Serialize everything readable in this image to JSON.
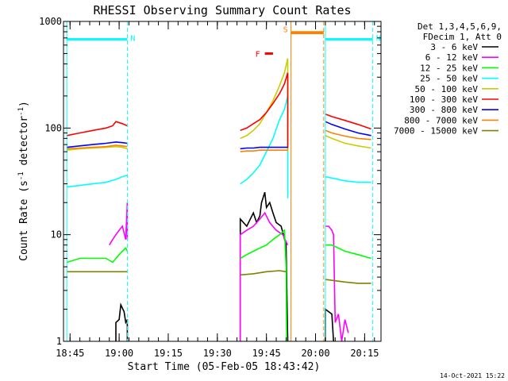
{
  "chart_data": {
    "type": "line",
    "title": "RHESSI Observing Summary Count Rates",
    "xlabel": "Start Time (05-Feb-05 18:43:42)",
    "ylabel": "Count Rate (s⁻¹ detector⁻¹)",
    "ylabel_parts": [
      "Count Rate (s",
      "-1",
      " detector",
      "-1",
      ")"
    ],
    "yscale": "log",
    "ylim": [
      1,
      1000
    ],
    "xlim_minutes": [
      -2,
      95
    ],
    "y_ticks": [
      {
        "value": 1,
        "label": "1"
      },
      {
        "value": 10,
        "label": "10"
      },
      {
        "value": 100,
        "label": "100"
      },
      {
        "value": 1000,
        "label": "1000"
      }
    ],
    "x_ticks": [
      {
        "value": 0,
        "label": "18:45"
      },
      {
        "value": 15,
        "label": "19:00"
      },
      {
        "value": 30,
        "label": "19:15"
      },
      {
        "value": 45,
        "label": "19:30"
      },
      {
        "value": 60,
        "label": "19:45"
      },
      {
        "value": 75,
        "label": "20:00"
      },
      {
        "value": 90,
        "label": "20:15"
      }
    ],
    "x_minor_step": 3,
    "footer_date": "14-Oct-2021 15:22",
    "legend_header": [
      "Det 1,3,4,5,6,9,",
      "FDecim 1, Att 0"
    ],
    "series": [
      {
        "name": "3 - 6 keV",
        "color": "#000000",
        "points": [
          [
            14,
            1
          ],
          [
            14,
            1.5
          ],
          [
            15,
            1.6
          ],
          [
            15.5,
            2.2
          ],
          [
            16.5,
            1.9
          ],
          [
            17,
            1.5
          ],
          [
            17.5,
            1.6
          ],
          [
            17.5,
            1
          ],
          [
            -20,
            null
          ],
          [
            52,
            1
          ],
          [
            52,
            14
          ],
          [
            54,
            12
          ],
          [
            56,
            16
          ],
          [
            57,
            13
          ],
          [
            58,
            15
          ],
          [
            58.5,
            20
          ],
          [
            59.5,
            25
          ],
          [
            60,
            18
          ],
          [
            61,
            20
          ],
          [
            62,
            16
          ],
          [
            63,
            13
          ],
          [
            64.5,
            12
          ],
          [
            66,
            8
          ],
          [
            66.5,
            1
          ],
          [
            -20,
            null
          ],
          [
            78,
            1
          ],
          [
            78,
            2
          ],
          [
            80,
            1.8
          ],
          [
            80.5,
            1
          ]
        ]
      },
      {
        "name": "6 - 12 keV",
        "color": "#ff00ff",
        "points": [
          [
            12,
            8
          ],
          [
            13,
            9
          ],
          [
            14,
            10
          ],
          [
            15,
            11
          ],
          [
            16,
            12
          ],
          [
            17,
            9
          ],
          [
            17.5,
            20
          ],
          [
            17.5,
            9
          ],
          [
            -20,
            null
          ],
          [
            52,
            1
          ],
          [
            52,
            10
          ],
          [
            54,
            11
          ],
          [
            56,
            12
          ],
          [
            58,
            14
          ],
          [
            59.5,
            16
          ],
          [
            61,
            13
          ],
          [
            63,
            11
          ],
          [
            65,
            10
          ],
          [
            66.5,
            8
          ],
          [
            -20,
            null
          ],
          [
            78,
            12
          ],
          [
            79,
            12
          ],
          [
            80,
            11
          ],
          [
            80.5,
            10
          ],
          [
            81,
            1.5
          ],
          [
            82,
            1.8
          ],
          [
            83,
            1
          ],
          [
            84,
            1.6
          ],
          [
            85,
            1.2
          ]
        ]
      },
      {
        "name": "12 - 25 keV",
        "color": "#00ff00",
        "points": [
          [
            -1,
            5.5
          ],
          [
            3,
            6
          ],
          [
            7,
            6
          ],
          [
            11,
            6
          ],
          [
            13,
            5.5
          ],
          [
            15,
            6.5
          ],
          [
            16,
            7
          ],
          [
            17,
            7.5
          ],
          [
            17.5,
            7
          ],
          [
            -20,
            null
          ],
          [
            52,
            6
          ],
          [
            54,
            6.5
          ],
          [
            56,
            7
          ],
          [
            58,
            7.5
          ],
          [
            60,
            8
          ],
          [
            62,
            9
          ],
          [
            64,
            10
          ],
          [
            65.5,
            11
          ],
          [
            66,
            5
          ],
          [
            66.2,
            1
          ],
          [
            -20,
            null
          ],
          [
            78,
            8
          ],
          [
            80,
            8
          ],
          [
            84,
            7
          ],
          [
            88,
            6.5
          ],
          [
            92,
            6
          ]
        ]
      },
      {
        "name": "25 - 50 keV",
        "color": "#00ffff",
        "points": [
          [
            -1,
            28
          ],
          [
            3,
            29
          ],
          [
            7,
            30
          ],
          [
            11,
            31
          ],
          [
            14,
            33
          ],
          [
            16,
            35
          ],
          [
            17.5,
            36
          ],
          [
            -20,
            null
          ],
          [
            52,
            30
          ],
          [
            54,
            33
          ],
          [
            56,
            38
          ],
          [
            58,
            45
          ],
          [
            60,
            60
          ],
          [
            62,
            80
          ],
          [
            64,
            120
          ],
          [
            65.5,
            150
          ],
          [
            66.5,
            200
          ],
          [
            66.5,
            22
          ],
          [
            -20,
            null
          ],
          [
            78,
            35
          ],
          [
            80,
            34
          ],
          [
            84,
            32
          ],
          [
            88,
            31
          ],
          [
            92,
            31
          ]
        ]
      },
      {
        "name": "50 - 100 keV",
        "color": "#cccc00",
        "points": [
          [
            -1,
            62
          ],
          [
            3,
            64
          ],
          [
            7,
            65
          ],
          [
            11,
            66
          ],
          [
            14,
            67
          ],
          [
            16,
            66
          ],
          [
            17.5,
            64
          ],
          [
            -20,
            null
          ],
          [
            52,
            80
          ],
          [
            54,
            85
          ],
          [
            56,
            95
          ],
          [
            58,
            110
          ],
          [
            60,
            140
          ],
          [
            62,
            180
          ],
          [
            64,
            250
          ],
          [
            65.5,
            330
          ],
          [
            66.5,
            450
          ],
          [
            66.5,
            60
          ],
          [
            -20,
            null
          ],
          [
            78,
            85
          ],
          [
            80,
            80
          ],
          [
            84,
            72
          ],
          [
            88,
            68
          ],
          [
            92,
            65
          ]
        ]
      },
      {
        "name": "100 - 300 keV",
        "color": "#ff0000",
        "points": [
          [
            -1,
            85
          ],
          [
            3,
            90
          ],
          [
            7,
            95
          ],
          [
            11,
            100
          ],
          [
            13,
            105
          ],
          [
            14,
            115
          ],
          [
            16,
            110
          ],
          [
            17.5,
            105
          ],
          [
            -20,
            null
          ],
          [
            52,
            95
          ],
          [
            54,
            100
          ],
          [
            56,
            110
          ],
          [
            58,
            120
          ],
          [
            60,
            140
          ],
          [
            62,
            170
          ],
          [
            64,
            210
          ],
          [
            65.5,
            260
          ],
          [
            66.5,
            330
          ],
          [
            66.5,
            65
          ],
          [
            -20,
            null
          ],
          [
            78,
            135
          ],
          [
            80,
            128
          ],
          [
            84,
            118
          ],
          [
            88,
            108
          ],
          [
            92,
            98
          ]
        ]
      },
      {
        "name": "300 - 800 keV",
        "color": "#0000ff",
        "points": [
          [
            -1,
            66
          ],
          [
            3,
            68
          ],
          [
            7,
            70
          ],
          [
            11,
            72
          ],
          [
            14,
            74
          ],
          [
            16,
            73
          ],
          [
            17.5,
            72
          ],
          [
            -20,
            null
          ],
          [
            52,
            64
          ],
          [
            54,
            65
          ],
          [
            56,
            65
          ],
          [
            58,
            66
          ],
          [
            60,
            66
          ],
          [
            62,
            66
          ],
          [
            64,
            66
          ],
          [
            66.5,
            66
          ],
          [
            -20,
            null
          ],
          [
            78,
            115
          ],
          [
            80,
            108
          ],
          [
            84,
            98
          ],
          [
            88,
            90
          ],
          [
            92,
            85
          ]
        ]
      },
      {
        "name": "800 - 7000 keV",
        "color": "#ff8000",
        "points": [
          [
            -1,
            64
          ],
          [
            3,
            65
          ],
          [
            7,
            66
          ],
          [
            11,
            67
          ],
          [
            14,
            69
          ],
          [
            16,
            68
          ],
          [
            17.5,
            67
          ],
          [
            -20,
            null
          ],
          [
            52,
            60
          ],
          [
            54,
            61
          ],
          [
            56,
            61
          ],
          [
            58,
            62
          ],
          [
            60,
            62
          ],
          [
            62,
            62
          ],
          [
            64,
            62
          ],
          [
            66.5,
            62
          ],
          [
            -20,
            null
          ],
          [
            67.5,
            800
          ],
          [
            72,
            800
          ],
          [
            76,
            800
          ],
          [
            77.5,
            800
          ],
          [
            -20,
            null
          ],
          [
            78,
            95
          ],
          [
            80,
            90
          ],
          [
            84,
            84
          ],
          [
            88,
            80
          ],
          [
            92,
            78
          ]
        ]
      },
      {
        "name": "7000 - 15000 keV",
        "color": "#808000",
        "points": [
          [
            -1,
            4.5
          ],
          [
            3,
            4.5
          ],
          [
            7,
            4.5
          ],
          [
            11,
            4.5
          ],
          [
            14,
            4.5
          ],
          [
            17.5,
            4.5
          ],
          [
            -20,
            null
          ],
          [
            52,
            4.2
          ],
          [
            56,
            4.3
          ],
          [
            60,
            4.5
          ],
          [
            64,
            4.6
          ],
          [
            66,
            4.5
          ],
          [
            -20,
            null
          ],
          [
            78,
            3.8
          ],
          [
            84,
            3.6
          ],
          [
            88,
            3.5
          ],
          [
            92,
            3.5
          ]
        ]
      }
    ],
    "intervals": [
      {
        "label": "N",
        "color": "#00ffff",
        "style": "night",
        "x_start": -1,
        "x_end": 17.5,
        "level": 680
      },
      {
        "label": "N",
        "color": "#00ffff",
        "style": "night",
        "x_start": 78,
        "x_end": 92.5,
        "level": 680
      },
      {
        "label": "F",
        "color": "#ff0000",
        "style": "flare",
        "x_start": 59.5,
        "x_end": 62,
        "level": 500
      },
      {
        "label": "S",
        "color": "#ff8000",
        "style": "saa",
        "x_start": 67.5,
        "x_end": 77.5,
        "level": 780
      }
    ]
  }
}
